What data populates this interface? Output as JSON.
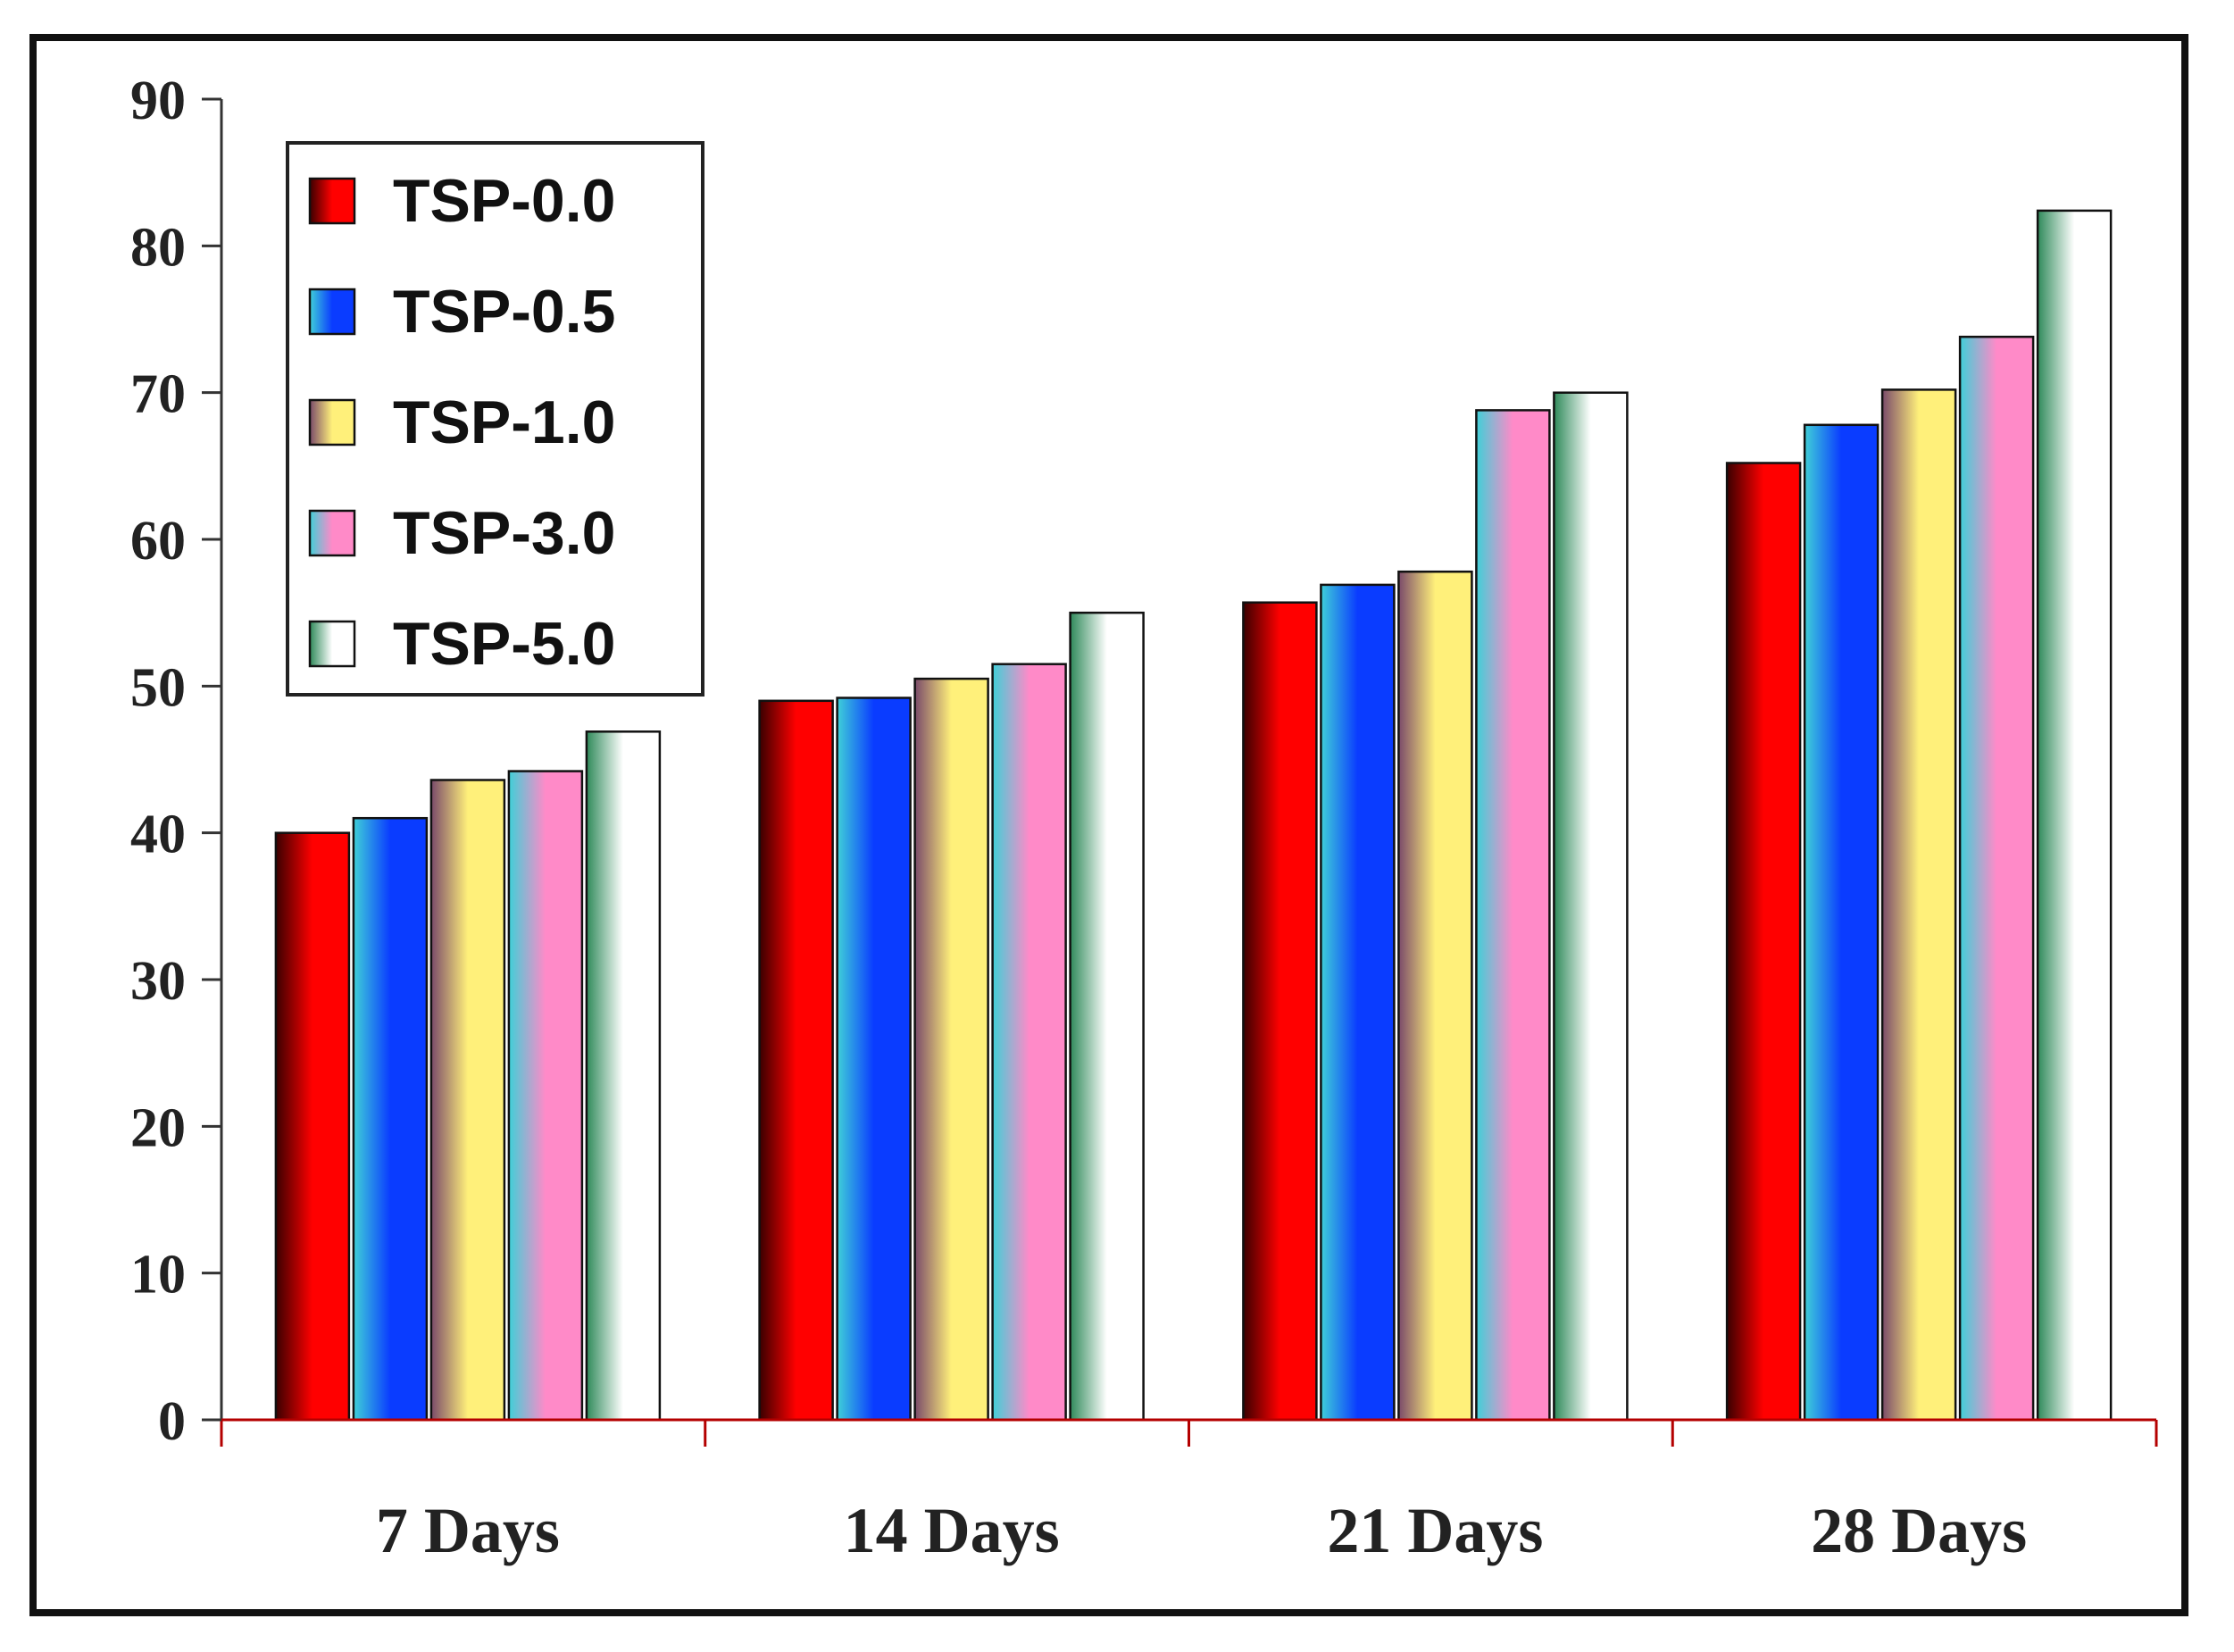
{
  "chart_data": {
    "type": "bar",
    "title": "",
    "xlabel": "",
    "ylabel": "",
    "ylim": [
      0,
      90
    ],
    "yticks": [
      0,
      10,
      20,
      30,
      40,
      50,
      60,
      70,
      80,
      90
    ],
    "categories": [
      "7 Days",
      "14 Days",
      "21 Days",
      "28 Days"
    ],
    "legend_position": "top-left",
    "series": [
      {
        "name": "TSP-0.0",
        "values": [
          40.0,
          49.0,
          55.7,
          65.2
        ],
        "colors": [
          "#3a0000",
          "#ff0000"
        ]
      },
      {
        "name": "TSP-0.5",
        "values": [
          41.0,
          49.2,
          56.9,
          67.8
        ],
        "colors": [
          "#3fd0d8",
          "#0a3cff"
        ]
      },
      {
        "name": "TSP-1.0",
        "values": [
          43.6,
          50.5,
          57.8,
          70.2
        ],
        "colors": [
          "#7a4a6a",
          "#fff07a"
        ]
      },
      {
        "name": "TSP-3.0",
        "values": [
          44.2,
          51.5,
          68.8,
          73.8
        ],
        "colors": [
          "#3fd0d8",
          "#ff8ac8"
        ]
      },
      {
        "name": "TSP-5.0",
        "values": [
          46.9,
          55.0,
          70.0,
          82.4
        ],
        "colors": [
          "#2f8a5a",
          "#ffffff"
        ]
      }
    ]
  }
}
